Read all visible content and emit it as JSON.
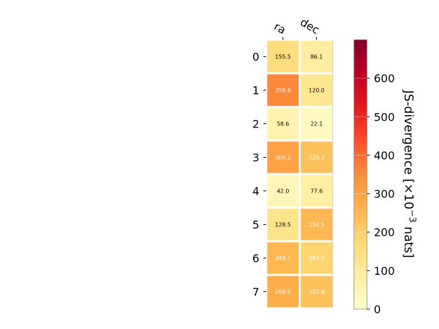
{
  "chart_data": {
    "type": "heatmap",
    "columns": [
      "ra",
      "dec"
    ],
    "rows": [
      "0",
      "1",
      "2",
      "3",
      "4",
      "5",
      "6",
      "7"
    ],
    "values": [
      [
        155.5,
        86.1
      ],
      [
        358.6,
        120.0
      ],
      [
        58.6,
        22.1
      ],
      [
        300.2,
        226.3
      ],
      [
        42.0,
        77.6
      ],
      [
        128.5,
        250.5
      ],
      [
        249.1,
        187.0
      ],
      [
        268.5,
        227.4
      ]
    ],
    "cell_labels": [
      [
        "155.5",
        "86.1"
      ],
      [
        "358.6",
        "120.0"
      ],
      [
        "58.6",
        "22.1"
      ],
      [
        "300.2",
        "226.3"
      ],
      [
        "42.0",
        "77.6"
      ],
      [
        "128.5",
        "250.5"
      ],
      [
        "249.1",
        "187.0"
      ],
      [
        "268.5",
        "227.4"
      ]
    ],
    "colorbar": {
      "label_main": "JS-divergence [×10",
      "label_exp": "−3",
      "label_unit": " nats]",
      "range": [
        0,
        700
      ],
      "ticks": [
        0,
        100,
        200,
        300,
        400,
        500,
        600
      ],
      "tick_labels": [
        "0",
        "100",
        "200",
        "300",
        "400",
        "500",
        "600"
      ],
      "colormap": "YlOrRd",
      "colors": [
        "#ffffcc",
        "#ffeda0",
        "#fed976",
        "#feb24c",
        "#fd8d3c",
        "#fc4e2a",
        "#e31a1c",
        "#bd0026",
        "#800026"
      ]
    },
    "cell_text_colors": {
      "light": "#ffffff",
      "dark": "#000000"
    },
    "grid_color": "#ffffff"
  }
}
